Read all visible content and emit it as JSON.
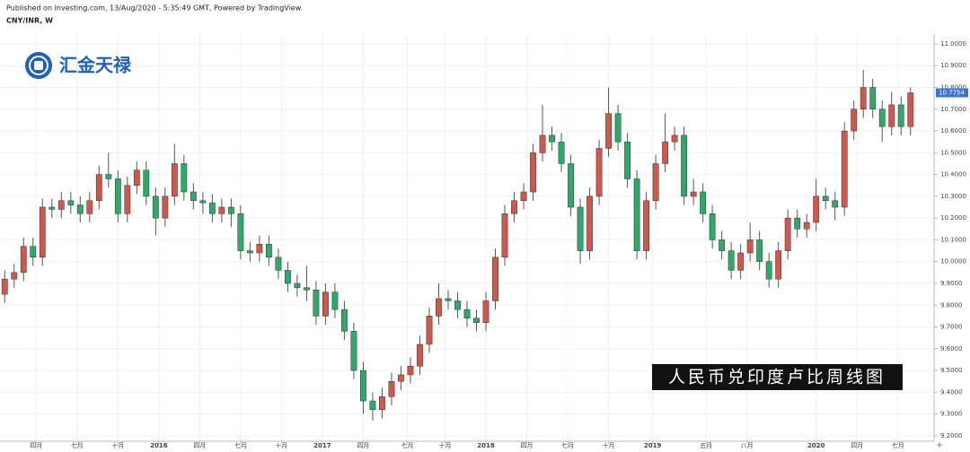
{
  "source": "Published on Investing.com, 13/Aug/2020 - 5:35:49 GMT, Powered by TradingView.",
  "logo": "汇金天禄",
  "overlay": "人民币兑印度卢比周线图",
  "chart_data": {
    "type": "candlestick",
    "title": "CNY/INR, W",
    "up_color": "#d0574b",
    "down_color": "#2fa86a",
    "grid": true,
    "last_color": "#3b73d6",
    "xlim": [
      1.5,
      298.5
    ],
    "ylim": [
      9.175,
      11.045
    ],
    "xticks": [
      {
        "value": 13,
        "label": "四月"
      },
      {
        "value": 26,
        "label": "七月"
      },
      {
        "value": 39,
        "label": "十月"
      },
      {
        "value": 52,
        "label": "2016"
      },
      {
        "value": 65,
        "label": "四月"
      },
      {
        "value": 78,
        "label": "七月"
      },
      {
        "value": 91,
        "label": "十月"
      },
      {
        "value": 104,
        "label": "2017"
      },
      {
        "value": 117,
        "label": "四月"
      },
      {
        "value": 131,
        "label": "七月"
      },
      {
        "value": 143,
        "label": "十月"
      },
      {
        "value": 156,
        "label": "2018"
      },
      {
        "value": 169,
        "label": "四月"
      },
      {
        "value": 182,
        "label": "七月"
      },
      {
        "value": 195,
        "label": "十月"
      },
      {
        "value": 209,
        "label": "2019"
      },
      {
        "value": 226,
        "label": "五月"
      },
      {
        "value": 239,
        "label": "八月"
      },
      {
        "value": 261,
        "label": "2020"
      },
      {
        "value": 274,
        "label": "四月"
      },
      {
        "value": 287,
        "label": "七月"
      }
    ],
    "yticks": [
      {
        "value": 9.2,
        "label": "9.2000"
      },
      {
        "value": 9.3,
        "label": "9.3000"
      },
      {
        "value": 9.4,
        "label": "9.4000"
      },
      {
        "value": 9.5,
        "label": "9.5000"
      },
      {
        "value": 9.6,
        "label": "9.6000"
      },
      {
        "value": 9.7,
        "label": "9.7000"
      },
      {
        "value": 9.8,
        "label": "9.8000"
      },
      {
        "value": 9.9,
        "label": "9.9000"
      },
      {
        "value": 10.0,
        "label": "10.0000"
      },
      {
        "value": 10.1,
        "label": "10.1000"
      },
      {
        "value": 10.2,
        "label": "10.2000"
      },
      {
        "value": 10.3,
        "label": "10.3000"
      },
      {
        "value": 10.4,
        "label": "10.4000"
      },
      {
        "value": 10.5,
        "label": "10.5000"
      },
      {
        "value": 10.6,
        "label": "10.6000"
      },
      {
        "value": 10.7,
        "label": "10.7000"
      },
      {
        "value": 10.8,
        "label": "10.8000"
      },
      {
        "value": 10.9,
        "label": "10.9000"
      },
      {
        "value": 11.0,
        "label": "11.0000"
      }
    ],
    "x": [
      3,
      6,
      9,
      12,
      15,
      18,
      21,
      24,
      27,
      30,
      33,
      36,
      39,
      42,
      45,
      48,
      51,
      54,
      57,
      60,
      63,
      66,
      69,
      72,
      75,
      78,
      81,
      84,
      87,
      90,
      93,
      96,
      99,
      102,
      105,
      108,
      111,
      114,
      117,
      120,
      123,
      126,
      129,
      132,
      135,
      138,
      141,
      144,
      147,
      150,
      153,
      156,
      159,
      162,
      165,
      168,
      171,
      174,
      177,
      180,
      183,
      186,
      189,
      192,
      195,
      198,
      201,
      204,
      207,
      210,
      213,
      216,
      219,
      222,
      225,
      228,
      231,
      234,
      237,
      240,
      243,
      246,
      249,
      252,
      255,
      258,
      261,
      264,
      267,
      270,
      273,
      276,
      279,
      282,
      285,
      288,
      291
    ],
    "open": [
      9.85,
      9.92,
      9.95,
      10.07,
      10.02,
      10.25,
      10.24,
      10.28,
      10.26,
      10.22,
      10.28,
      10.4,
      10.38,
      10.22,
      10.35,
      10.42,
      10.3,
      10.2,
      10.3,
      10.45,
      10.32,
      10.28,
      10.27,
      10.22,
      10.25,
      10.22,
      10.05,
      10.04,
      10.08,
      10.02,
      9.96,
      9.9,
      9.88,
      9.87,
      9.75,
      9.86,
      9.78,
      9.68,
      9.5,
      9.36,
      9.32,
      9.38,
      9.45,
      9.48,
      9.52,
      9.62,
      9.75,
      9.83,
      9.82,
      9.78,
      9.74,
      9.72,
      9.82,
      10.02,
      10.22,
      10.28,
      10.32,
      10.5,
      10.58,
      10.55,
      10.45,
      10.25,
      10.05,
      10.3,
      10.52,
      10.68,
      10.55,
      10.38,
      10.05,
      10.28,
      10.45,
      10.55,
      10.58,
      10.3,
      10.32,
      10.22,
      10.1,
      10.05,
      9.96,
      10.04,
      10.1,
      10.0,
      9.92,
      10.05,
      10.2,
      10.15,
      10.18,
      10.3,
      10.28,
      10.25,
      10.6,
      10.7,
      10.8,
      10.7,
      10.62,
      10.72,
      10.62
    ],
    "high": [
      9.96,
      9.99,
      10.11,
      10.11,
      10.29,
      10.29,
      10.32,
      10.32,
      10.3,
      10.32,
      10.44,
      10.5,
      10.42,
      10.39,
      10.46,
      10.46,
      10.34,
      10.34,
      10.54,
      10.49,
      10.36,
      10.32,
      10.31,
      10.29,
      10.29,
      10.26,
      10.09,
      10.12,
      10.12,
      10.06,
      10.0,
      9.94,
      9.98,
      9.91,
      9.9,
      9.9,
      9.82,
      9.72,
      9.54,
      9.4,
      9.42,
      9.49,
      9.52,
      9.56,
      9.66,
      9.79,
      9.9,
      9.87,
      9.86,
      9.82,
      9.78,
      9.86,
      10.06,
      10.26,
      10.32,
      10.36,
      10.54,
      10.72,
      10.62,
      10.59,
      10.49,
      10.29,
      10.34,
      10.56,
      10.8,
      10.72,
      10.59,
      10.42,
      10.32,
      10.49,
      10.68,
      10.62,
      10.62,
      10.38,
      10.36,
      10.26,
      10.14,
      10.09,
      10.08,
      10.18,
      10.14,
      10.04,
      10.09,
      10.24,
      10.24,
      10.22,
      10.38,
      10.34,
      10.32,
      10.64,
      10.74,
      10.88,
      10.84,
      10.74,
      10.78,
      10.76,
      10.8
    ],
    "low": [
      9.81,
      9.88,
      9.91,
      9.98,
      9.98,
      10.2,
      10.2,
      10.22,
      10.18,
      10.18,
      10.24,
      10.34,
      10.18,
      10.18,
      10.31,
      10.26,
      10.12,
      10.16,
      10.26,
      10.28,
      10.24,
      10.22,
      10.18,
      10.18,
      10.16,
      10.01,
      10.0,
      10.0,
      9.98,
      9.92,
      9.86,
      9.84,
      9.82,
      9.71,
      9.71,
      9.74,
      9.64,
      9.46,
      9.3,
      9.27,
      9.28,
      9.34,
      9.41,
      9.44,
      9.48,
      9.58,
      9.71,
      9.78,
      9.74,
      9.7,
      9.68,
      9.68,
      9.78,
      9.98,
      10.18,
      10.24,
      10.28,
      10.46,
      10.51,
      10.41,
      10.21,
      9.99,
      10.01,
      10.26,
      10.48,
      10.51,
      10.34,
      10.01,
      10.01,
      10.24,
      10.41,
      10.51,
      10.26,
      10.26,
      10.18,
      10.06,
      10.01,
      9.92,
      9.92,
      10.0,
      9.96,
      9.88,
      9.88,
      10.01,
      10.11,
      10.11,
      10.14,
      10.24,
      10.19,
      10.21,
      10.56,
      10.66,
      10.66,
      10.55,
      10.58,
      10.58,
      10.58
    ],
    "close": [
      9.92,
      9.95,
      10.07,
      10.02,
      10.25,
      10.24,
      10.28,
      10.26,
      10.22,
      10.28,
      10.4,
      10.38,
      10.22,
      10.35,
      10.42,
      10.3,
      10.2,
      10.3,
      10.45,
      10.32,
      10.28,
      10.27,
      10.22,
      10.25,
      10.22,
      10.05,
      10.04,
      10.08,
      10.02,
      9.96,
      9.9,
      9.88,
      9.87,
      9.75,
      9.86,
      9.78,
      9.68,
      9.5,
      9.36,
      9.32,
      9.38,
      9.45,
      9.48,
      9.52,
      9.62,
      9.75,
      9.83,
      9.82,
      9.78,
      9.74,
      9.72,
      9.82,
      10.02,
      10.22,
      10.28,
      10.32,
      10.5,
      10.58,
      10.55,
      10.45,
      10.25,
      10.05,
      10.3,
      10.52,
      10.68,
      10.55,
      10.38,
      10.05,
      10.28,
      10.45,
      10.55,
      10.58,
      10.3,
      10.32,
      10.22,
      10.1,
      10.05,
      9.96,
      10.04,
      10.1,
      10.0,
      9.92,
      10.05,
      10.2,
      10.15,
      10.18,
      10.3,
      10.28,
      10.25,
      10.6,
      10.7,
      10.8,
      10.7,
      10.62,
      10.72,
      10.62,
      10.7754
    ]
  }
}
